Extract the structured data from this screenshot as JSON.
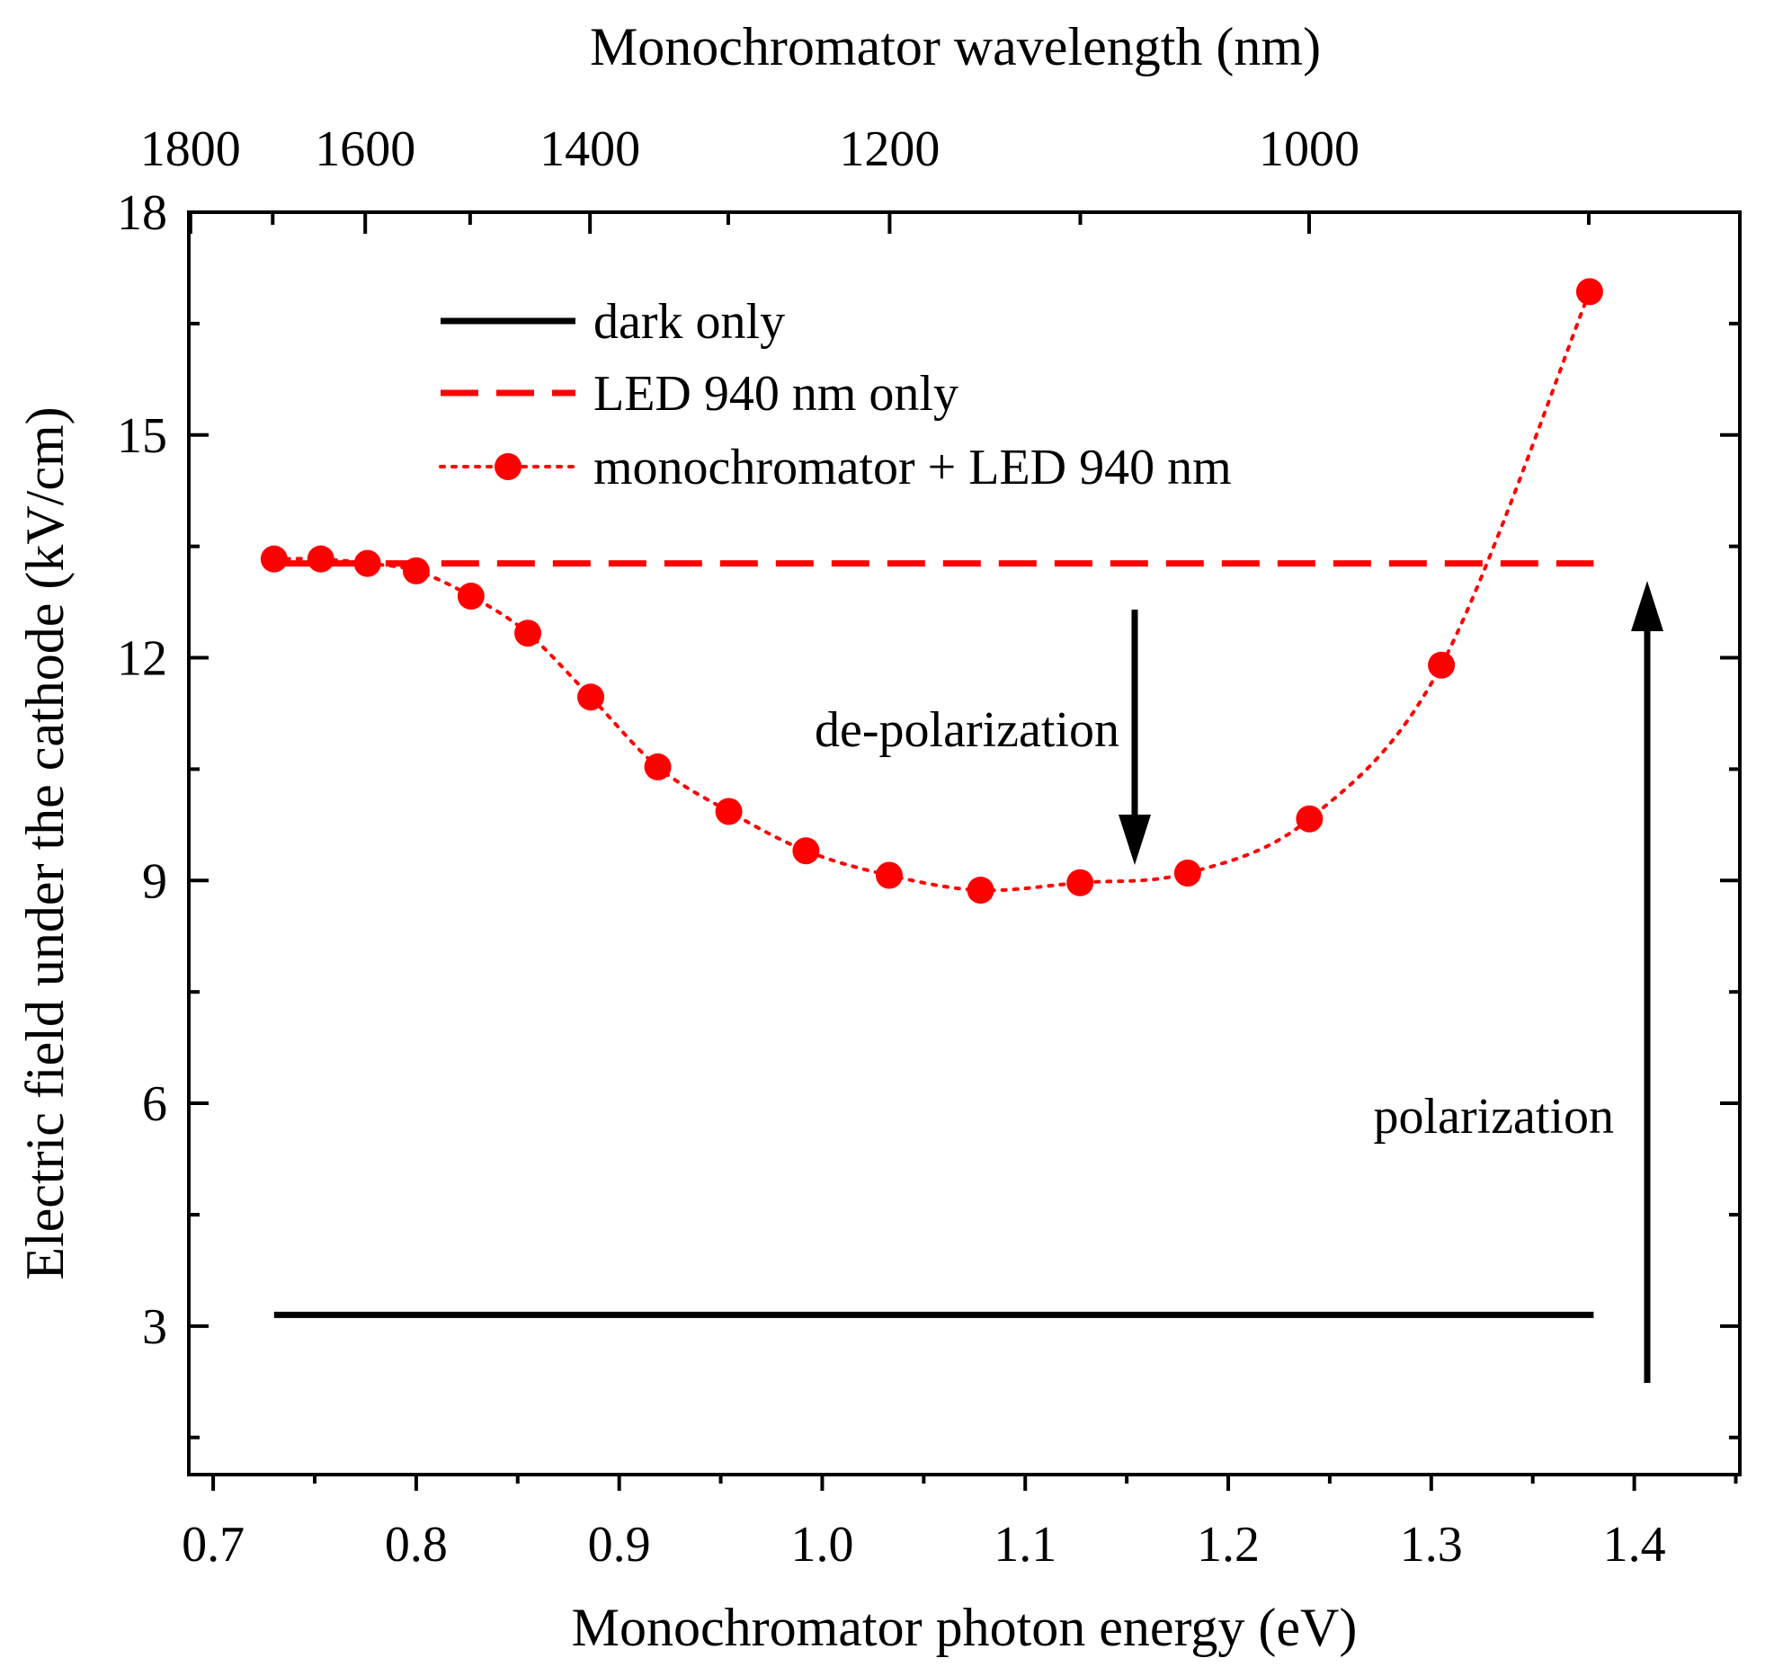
{
  "chart_data": {
    "type": "scatter",
    "title": "",
    "xlabel": "Monochromator photon energy (eV)",
    "ylabel": "Electric field under the cathode (kV/cm)",
    "x2label": "Monochromator wavelength (nm)",
    "xlim": [
      0.688,
      1.452
    ],
    "ylim": [
      1.0,
      18.0
    ],
    "xticks": [
      0.7,
      0.8,
      0.9,
      1.0,
      1.1,
      1.2,
      1.3,
      1.4
    ],
    "xtick_labels": [
      "0.7",
      "0.8",
      "0.9",
      "1.0",
      "1.1",
      "1.2",
      "1.3",
      "1.4"
    ],
    "yticks": [
      3,
      6,
      9,
      12,
      15,
      18
    ],
    "ytick_labels": [
      "3",
      "6",
      "9",
      "12",
      "15",
      "18"
    ],
    "x2ticks_nm": [
      1800,
      1600,
      1400,
      1200,
      1000
    ],
    "x2tick_labels": [
      "1800",
      "1600",
      "1400",
      "1200",
      "1000"
    ],
    "x2minor_nm": [
      1700,
      1500,
      1300,
      1100,
      900
    ],
    "legend_position": "top-left",
    "series": [
      {
        "name": "dark only",
        "style": "solid",
        "color": "#000000",
        "x": [
          0.73,
          1.38
        ],
        "y": [
          3.15,
          3.15
        ]
      },
      {
        "name": "LED 940 nm only",
        "style": "dashed",
        "color": "#ff0000",
        "x": [
          0.73,
          1.38
        ],
        "y": [
          13.27,
          13.27
        ]
      },
      {
        "name": "monochromator + LED 940 nm",
        "style": "dotted-markers",
        "color": "#ff0000",
        "x": [
          0.73,
          0.753,
          0.776,
          0.8,
          0.827,
          0.855,
          0.886,
          0.919,
          0.954,
          0.992,
          1.033,
          1.078,
          1.127,
          1.18,
          1.24,
          1.305,
          1.378
        ],
        "y": [
          13.33,
          13.33,
          13.27,
          13.17,
          12.83,
          12.33,
          11.47,
          10.53,
          9.93,
          9.4,
          9.07,
          8.87,
          8.97,
          9.1,
          9.83,
          11.9,
          16.93
        ]
      }
    ],
    "annotations": [
      {
        "text": "de-polarization",
        "arrow": "down"
      },
      {
        "text": "polarization",
        "arrow": "up"
      }
    ]
  }
}
